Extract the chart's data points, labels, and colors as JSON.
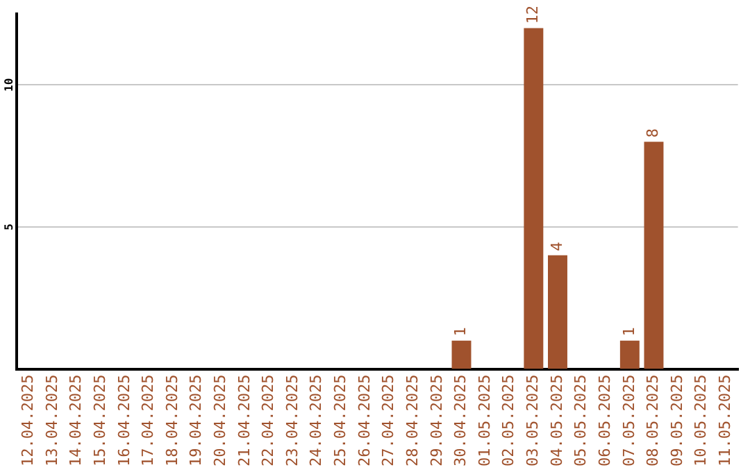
{
  "chart_data": {
    "type": "bar",
    "categories": [
      "12.04.2025",
      "13.04.2025",
      "14.04.2025",
      "15.04.2025",
      "16.04.2025",
      "17.04.2025",
      "18.04.2025",
      "19.04.2025",
      "20.04.2025",
      "21.04.2025",
      "22.04.2025",
      "23.04.2025",
      "24.04.2025",
      "25.04.2025",
      "26.04.2025",
      "27.04.2025",
      "28.04.2025",
      "29.04.2025",
      "30.04.2025",
      "01.05.2025",
      "02.05.2025",
      "03.05.2025",
      "04.05.2025",
      "05.05.2025",
      "06.05.2025",
      "07.05.2025",
      "08.05.2025",
      "09.05.2025",
      "10.05.2025",
      "11.05.2025"
    ],
    "values": [
      0,
      0,
      0,
      0,
      0,
      0,
      0,
      0,
      0,
      0,
      0,
      0,
      0,
      0,
      0,
      0,
      0,
      0,
      1,
      0,
      0,
      12,
      4,
      0,
      0,
      1,
      8,
      0,
      0,
      0
    ],
    "value_labels": [
      null,
      null,
      null,
      null,
      null,
      null,
      null,
      null,
      null,
      null,
      null,
      null,
      null,
      null,
      null,
      null,
      null,
      null,
      "1",
      null,
      null,
      "12",
      "4",
      null,
      null,
      "1",
      "8",
      null,
      null,
      null
    ],
    "color": "#a0522d",
    "ylim": [
      0,
      12.5
    ],
    "yticks": [
      5,
      10
    ],
    "grid": "y",
    "legend": false
  }
}
